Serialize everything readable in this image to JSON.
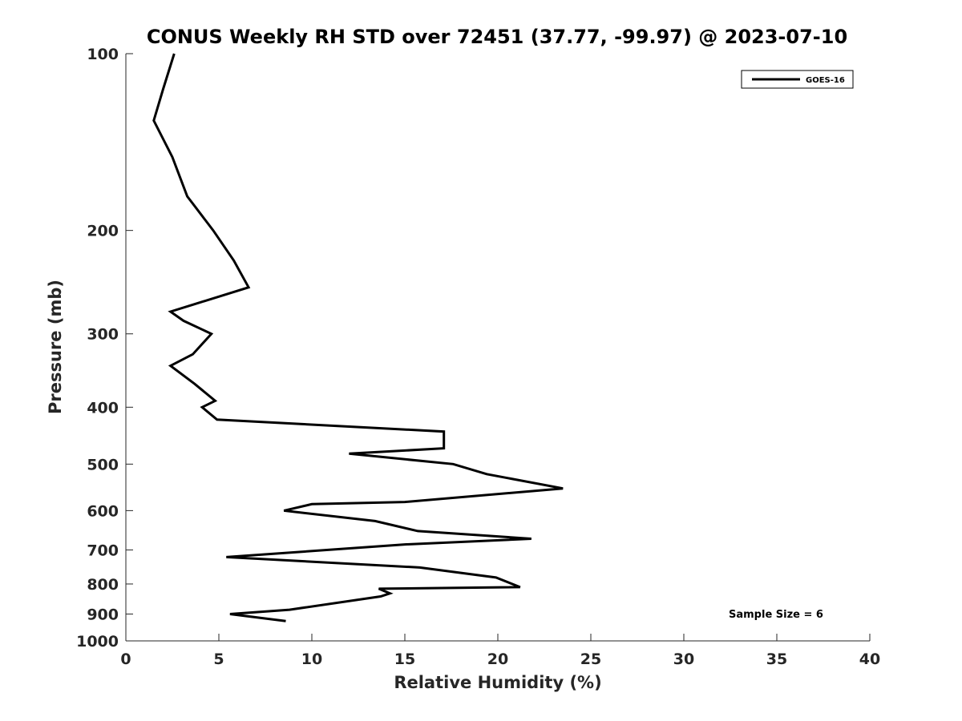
{
  "chart_data": {
    "type": "line",
    "title": "CONUS Weekly RH STD over 72451 (37.77, -99.97) @ 2023-07-10",
    "xlabel": "Relative Humidity (%)",
    "ylabel": "Pressure (mb)",
    "xlim": [
      0,
      40
    ],
    "ylim": [
      100,
      1000
    ],
    "y_scale": "log",
    "y_reversed": true,
    "grid": false,
    "x_ticks": [
      "0",
      "5",
      "10",
      "15",
      "20",
      "25",
      "30",
      "35",
      "40"
    ],
    "y_ticks": [
      "100",
      "200",
      "300",
      "400",
      "500",
      "600",
      "700",
      "800",
      "900",
      "1000"
    ],
    "legend": {
      "position": "top-right",
      "entries": [
        "GOES-16"
      ]
    },
    "annotation": "Sample Size = 6",
    "series": [
      {
        "name": "GOES-16",
        "color": "#000000",
        "x": [
          2.6,
          2.0,
          1.5,
          2.5,
          3.3,
          4.7,
          5.8,
          6.6,
          2.4,
          3.1,
          4.6,
          3.6,
          2.4,
          3.7,
          4.8,
          4.1,
          4.9,
          17.1,
          17.1,
          12.0,
          17.6,
          19.4,
          23.5,
          15.0,
          10.0,
          8.5,
          13.4,
          15.7,
          21.8,
          15.0,
          5.4,
          15.8,
          15.8,
          19.9,
          21.2,
          13.6,
          14.2,
          13.7,
          8.8,
          5.6,
          8.6
        ],
        "y": [
          100,
          115,
          130,
          150,
          175,
          200,
          225,
          250,
          275,
          285,
          300,
          325,
          340,
          365,
          390,
          400,
          420,
          440,
          470,
          480,
          500,
          520,
          550,
          580,
          585,
          600,
          625,
          650,
          670,
          685,
          720,
          750,
          750,
          780,
          810,
          815,
          830,
          840,
          885,
          900,
          925
        ]
      }
    ]
  }
}
